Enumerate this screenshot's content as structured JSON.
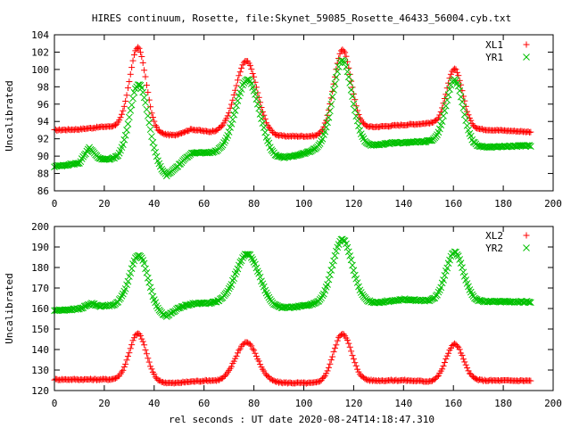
{
  "chart_data": [
    {
      "type": "scatter",
      "title": "HIRES continuum, Rosette, file:Skynet_59085_Rosette_46433_56004.cyb.txt",
      "xlabel": "",
      "ylabel": "Uncalibrated",
      "xlim": [
        0,
        200
      ],
      "ylim": [
        86,
        104
      ],
      "xticks": [
        0,
        20,
        40,
        60,
        80,
        100,
        120,
        140,
        160,
        180,
        200
      ],
      "yticks": [
        86,
        88,
        90,
        92,
        94,
        96,
        98,
        100,
        102,
        104
      ],
      "grid": false,
      "legend_position": "top-right",
      "x_range": [
        0,
        191
      ],
      "series": [
        {
          "name": "XL1",
          "color": "#ff0000",
          "marker": "plus",
          "baseline": [
            [
              0,
              93.0
            ],
            [
              10,
              93.1
            ],
            [
              20,
              93.4
            ],
            [
              27,
              93.4
            ],
            [
              40,
              92.6
            ],
            [
              48,
              92.4
            ],
            [
              55,
              93.1
            ],
            [
              62,
              92.8
            ],
            [
              68,
              92.9
            ],
            [
              90,
              92.3
            ],
            [
              105,
              92.3
            ],
            [
              125,
              93.3
            ],
            [
              140,
              93.6
            ],
            [
              150,
              93.8
            ],
            [
              170,
              93.1
            ],
            [
              191,
              92.8
            ]
          ],
          "peaks": [
            {
              "x": 33.5,
              "amp": 9.5,
              "w": 3.3
            },
            {
              "x": 77,
              "amp": 8.3,
              "w": 4.3
            },
            {
              "x": 115.5,
              "amp": 9.4,
              "w": 3.5
            },
            {
              "x": 160.5,
              "amp": 6.6,
              "w": 3.2
            }
          ]
        },
        {
          "name": "YR1",
          "color": "#00c000",
          "marker": "cross",
          "baseline": [
            [
              0,
              88.8
            ],
            [
              10,
              89.2
            ],
            [
              14,
              91.0
            ],
            [
              18,
              89.7
            ],
            [
              26,
              89.6
            ],
            [
              32,
              90.0
            ],
            [
              38,
              89.3
            ],
            [
              45,
              87.7
            ],
            [
              50,
              89.0
            ],
            [
              55,
              90.4
            ],
            [
              68,
              90.3
            ],
            [
              88,
              89.5
            ],
            [
              100,
              90.3
            ],
            [
              108,
              91.0
            ],
            [
              128,
              91.2
            ],
            [
              135,
              91.5
            ],
            [
              150,
              91.7
            ],
            [
              165,
              91.0
            ],
            [
              191,
              91.2
            ]
          ],
          "peaks": [
            {
              "x": 34,
              "amp": 8.5,
              "w": 3.6
            },
            {
              "x": 77.5,
              "amp": 8.9,
              "w": 4.8
            },
            {
              "x": 115.5,
              "amp": 10.0,
              "w": 3.8
            },
            {
              "x": 160.5,
              "amp": 7.6,
              "w": 3.4
            }
          ]
        }
      ]
    },
    {
      "type": "scatter",
      "title": "",
      "xlabel": "rel seconds : UT date 2020-08-24T14:18:47.310",
      "ylabel": "Uncalibrated",
      "xlim": [
        0,
        200
      ],
      "ylim": [
        120,
        200
      ],
      "xticks": [
        0,
        20,
        40,
        60,
        80,
        100,
        120,
        140,
        160,
        180,
        200
      ],
      "yticks": [
        120,
        130,
        140,
        150,
        160,
        170,
        180,
        190,
        200
      ],
      "grid": false,
      "legend_position": "top-right",
      "x_range": [
        0,
        191
      ],
      "series": [
        {
          "name": "XL2",
          "color": "#ff0000",
          "marker": "plus",
          "baseline": [
            [
              0,
              125.4
            ],
            [
              20,
              125.4
            ],
            [
              28,
              125.3
            ],
            [
              40,
              124.0
            ],
            [
              48,
              123.6
            ],
            [
              55,
              124.4
            ],
            [
              62,
              124.9
            ],
            [
              68,
              124.2
            ],
            [
              90,
              123.8
            ],
            [
              105,
              123.6
            ],
            [
              125,
              124.8
            ],
            [
              140,
              125.0
            ],
            [
              150,
              124.4
            ],
            [
              170,
              124.9
            ],
            [
              191,
              124.8
            ]
          ],
          "peaks": [
            {
              "x": 33.5,
              "amp": 23.0,
              "w": 3.4
            },
            {
              "x": 77,
              "amp": 19.5,
              "w": 4.4
            },
            {
              "x": 115.5,
              "amp": 23.5,
              "w": 3.6
            },
            {
              "x": 160.5,
              "amp": 18.0,
              "w": 3.4
            }
          ]
        },
        {
          "name": "YR2",
          "color": "#00c000",
          "marker": "cross",
          "baseline": [
            [
              0,
              159.0
            ],
            [
              10,
              159.8
            ],
            [
              15,
              162.5
            ],
            [
              18,
              161.2
            ],
            [
              27,
              161.5
            ],
            [
              40,
              157.0
            ],
            [
              45,
              156.0
            ],
            [
              50,
              160.5
            ],
            [
              56,
              162.5
            ],
            [
              68,
              162.8
            ],
            [
              90,
              160.0
            ],
            [
              108,
              162.5
            ],
            [
              130,
              163.0
            ],
            [
              140,
              164.5
            ],
            [
              152,
              163.5
            ],
            [
              170,
              163.4
            ],
            [
              191,
              163.2
            ]
          ],
          "peaks": [
            {
              "x": 34,
              "amp": 27.0,
              "w": 3.7
            },
            {
              "x": 77.5,
              "amp": 25.0,
              "w": 4.7
            },
            {
              "x": 115.5,
              "amp": 31.0,
              "w": 3.9
            },
            {
              "x": 160.5,
              "amp": 24.0,
              "w": 3.5
            }
          ]
        }
      ]
    }
  ]
}
